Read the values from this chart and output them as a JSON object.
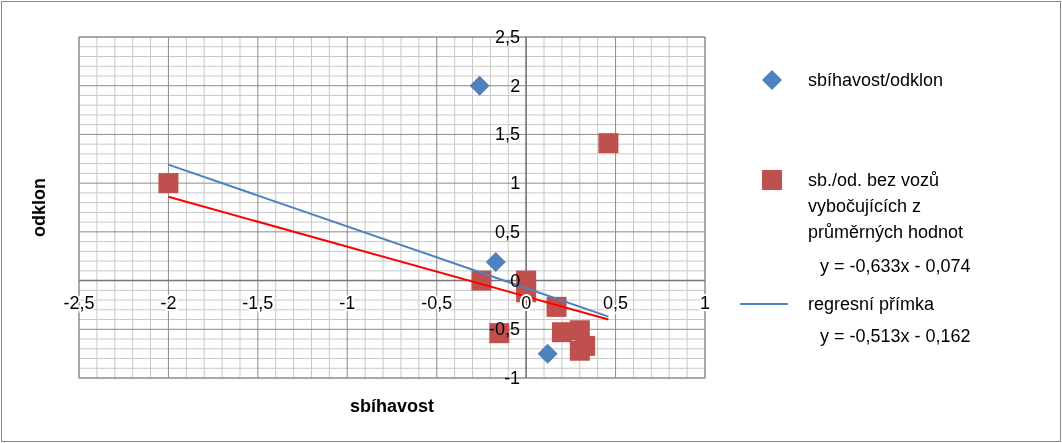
{
  "chart_data": {
    "type": "scatter",
    "xlabel": "sbíhavost",
    "ylabel": "odklon",
    "xlim": [
      -2.5,
      1
    ],
    "xticks": [
      {
        "value": -2.5,
        "label": "-2,5"
      },
      {
        "value": -2,
        "label": "-2"
      },
      {
        "value": -1.5,
        "label": "-1,5"
      },
      {
        "value": -1,
        "label": "-1"
      },
      {
        "value": -0.5,
        "label": "-0,5"
      },
      {
        "value": 0,
        "label": "0"
      },
      {
        "value": 0.5,
        "label": "0,5"
      },
      {
        "value": 1,
        "label": "1"
      }
    ],
    "ylim": [
      -1,
      2.5
    ],
    "yticks": [
      {
        "value": -1,
        "label": "-1"
      },
      {
        "value": -0.5,
        "label": "-0,5"
      },
      {
        "value": 0,
        "label": "0"
      },
      {
        "value": 0.5,
        "label": "0,5"
      },
      {
        "value": 1,
        "label": "1"
      },
      {
        "value": 1.5,
        "label": "1,5"
      },
      {
        "value": 2,
        "label": "2"
      },
      {
        "value": 2.5,
        "label": "2,5"
      }
    ],
    "grid": true,
    "legend": "right",
    "series": [
      {
        "name": "sbíhavost/odklon",
        "marker": "diamond",
        "color": "#4f81bd",
        "x": [
          -0.26,
          -0.17,
          0.12
        ],
        "values": [
          2,
          0.19,
          -0.75
        ]
      },
      {
        "name": "sb./od. bez vozů vybočujících z průměrných hodnot",
        "marker": "square",
        "color": "#c0504d",
        "x": [
          -2,
          -0.25,
          -0.15,
          0,
          0,
          0.17,
          0.2,
          0.3,
          0.3,
          0.33,
          0.46
        ],
        "values": [
          1,
          0,
          -0.54,
          0,
          -0.12,
          -0.27,
          -0.53,
          -0.51,
          -0.72,
          -0.67,
          1.41
        ]
      },
      {
        "name": "regresní přímka",
        "type": "line",
        "marker": "none",
        "color": "#4f81bd",
        "x": [
          -2,
          0.46
        ],
        "values": [
          1.19,
          -0.37
        ]
      },
      {
        "type": "line",
        "marker": "none",
        "color": "#ff0000",
        "x": [
          -2,
          0.46
        ],
        "values": [
          0.86,
          -0.4
        ]
      }
    ],
    "annotations": [
      "y = -0,633x - 0,074",
      "y = -0,513x - 0,162"
    ]
  }
}
